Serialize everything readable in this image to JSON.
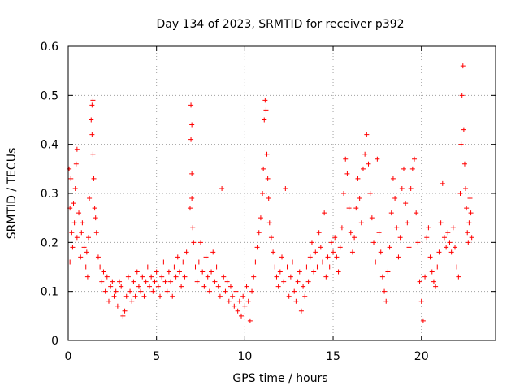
{
  "chart_data": {
    "type": "scatter",
    "title": "Day 134 of 2023, SRMTID for receiver p392",
    "xlabel": "GPS time / hours",
    "ylabel": "SRMTID / TECUs",
    "xlim": [
      0,
      24.2
    ],
    "ylim": [
      0,
      0.6
    ],
    "x_ticks": [
      0,
      5,
      10,
      15,
      20
    ],
    "x_tick_labels": [
      "0",
      "5",
      "10",
      "15",
      "20"
    ],
    "y_ticks": [
      0,
      0.1,
      0.2,
      0.3,
      0.4,
      0.5,
      0.6
    ],
    "y_tick_labels": [
      "0",
      "0.1",
      "0.2",
      "0.3",
      "0.4",
      "0.5",
      "0.6"
    ],
    "grid": true,
    "marker": "plus",
    "series": [
      {
        "name": "SRMTID",
        "color": "#ff0000",
        "points": [
          [
            0.05,
            0.35
          ],
          [
            0.1,
            0.27
          ],
          [
            0.1,
            0.16
          ],
          [
            0.15,
            0.33
          ],
          [
            0.2,
            0.22
          ],
          [
            0.25,
            0.19
          ],
          [
            0.3,
            0.28
          ],
          [
            0.35,
            0.24
          ],
          [
            0.4,
            0.31
          ],
          [
            0.45,
            0.36
          ],
          [
            0.5,
            0.39
          ],
          [
            0.5,
            0.21
          ],
          [
            0.6,
            0.26
          ],
          [
            0.7,
            0.17
          ],
          [
            0.75,
            0.22
          ],
          [
            0.8,
            0.24
          ],
          [
            0.9,
            0.19
          ],
          [
            1.0,
            0.15
          ],
          [
            1.05,
            0.18
          ],
          [
            1.1,
            0.13
          ],
          [
            1.15,
            0.21
          ],
          [
            1.2,
            0.29
          ],
          [
            1.3,
            0.45
          ],
          [
            1.35,
            0.48
          ],
          [
            1.4,
            0.49
          ],
          [
            1.35,
            0.42
          ],
          [
            1.4,
            0.38
          ],
          [
            1.45,
            0.33
          ],
          [
            1.5,
            0.27
          ],
          [
            1.55,
            0.25
          ],
          [
            1.6,
            0.22
          ],
          [
            1.7,
            0.17
          ],
          [
            1.8,
            0.15
          ],
          [
            1.9,
            0.12
          ],
          [
            2.0,
            0.14
          ],
          [
            2.1,
            0.1
          ],
          [
            2.2,
            0.13
          ],
          [
            2.3,
            0.08
          ],
          [
            2.4,
            0.11
          ],
          [
            2.5,
            0.12
          ],
          [
            2.6,
            0.09
          ],
          [
            2.7,
            0.1
          ],
          [
            2.8,
            0.07
          ],
          [
            2.9,
            0.12
          ],
          [
            3.0,
            0.11
          ],
          [
            3.1,
            0.05
          ],
          [
            3.2,
            0.06
          ],
          [
            3.3,
            0.09
          ],
          [
            3.4,
            0.13
          ],
          [
            3.5,
            0.1
          ],
          [
            3.6,
            0.08
          ],
          [
            3.7,
            0.12
          ],
          [
            3.8,
            0.09
          ],
          [
            3.9,
            0.14
          ],
          [
            4.0,
            0.11
          ],
          [
            4.1,
            0.1
          ],
          [
            4.2,
            0.13
          ],
          [
            4.3,
            0.09
          ],
          [
            4.4,
            0.12
          ],
          [
            4.5,
            0.15
          ],
          [
            4.6,
            0.11
          ],
          [
            4.7,
            0.13
          ],
          [
            4.8,
            0.1
          ],
          [
            4.9,
            0.12
          ],
          [
            5.0,
            0.14
          ],
          [
            5.1,
            0.11
          ],
          [
            5.2,
            0.09
          ],
          [
            5.3,
            0.13
          ],
          [
            5.4,
            0.16
          ],
          [
            5.5,
            0.12
          ],
          [
            5.6,
            0.1
          ],
          [
            5.7,
            0.14
          ],
          [
            5.8,
            0.12
          ],
          [
            5.9,
            0.09
          ],
          [
            6.0,
            0.15
          ],
          [
            6.1,
            0.13
          ],
          [
            6.2,
            0.17
          ],
          [
            6.3,
            0.14
          ],
          [
            6.4,
            0.11
          ],
          [
            6.5,
            0.16
          ],
          [
            6.6,
            0.13
          ],
          [
            6.7,
            0.18
          ],
          [
            6.9,
            0.27
          ],
          [
            7.0,
            0.34
          ],
          [
            7.0,
            0.29
          ],
          [
            6.95,
            0.41
          ],
          [
            7.0,
            0.44
          ],
          [
            6.95,
            0.48
          ],
          [
            7.05,
            0.23
          ],
          [
            7.1,
            0.2
          ],
          [
            7.2,
            0.15
          ],
          [
            7.3,
            0.12
          ],
          [
            7.4,
            0.16
          ],
          [
            7.5,
            0.2
          ],
          [
            7.6,
            0.14
          ],
          [
            7.7,
            0.11
          ],
          [
            7.8,
            0.17
          ],
          [
            7.9,
            0.13
          ],
          [
            8.0,
            0.1
          ],
          [
            8.1,
            0.14
          ],
          [
            8.2,
            0.18
          ],
          [
            8.3,
            0.12
          ],
          [
            8.4,
            0.15
          ],
          [
            8.5,
            0.11
          ],
          [
            8.6,
            0.09
          ],
          [
            8.7,
            0.31
          ],
          [
            8.8,
            0.13
          ],
          [
            8.9,
            0.1
          ],
          [
            9.0,
            0.12
          ],
          [
            9.1,
            0.08
          ],
          [
            9.2,
            0.11
          ],
          [
            9.3,
            0.09
          ],
          [
            9.4,
            0.07
          ],
          [
            9.5,
            0.1
          ],
          [
            9.6,
            0.06
          ],
          [
            9.7,
            0.08
          ],
          [
            9.8,
            0.05
          ],
          [
            9.9,
            0.09
          ],
          [
            10.0,
            0.07
          ],
          [
            10.1,
            0.11
          ],
          [
            10.2,
            0.08
          ],
          [
            10.3,
            0.04
          ],
          [
            10.4,
            0.1
          ],
          [
            10.5,
            0.13
          ],
          [
            10.6,
            0.16
          ],
          [
            10.7,
            0.19
          ],
          [
            10.8,
            0.22
          ],
          [
            10.9,
            0.25
          ],
          [
            11.0,
            0.3
          ],
          [
            11.05,
            0.35
          ],
          [
            11.1,
            0.45
          ],
          [
            11.15,
            0.49
          ],
          [
            11.2,
            0.47
          ],
          [
            11.25,
            0.38
          ],
          [
            11.3,
            0.33
          ],
          [
            11.35,
            0.29
          ],
          [
            11.4,
            0.24
          ],
          [
            11.5,
            0.21
          ],
          [
            11.6,
            0.18
          ],
          [
            11.7,
            0.15
          ],
          [
            11.8,
            0.13
          ],
          [
            11.9,
            0.11
          ],
          [
            12.0,
            0.14
          ],
          [
            12.1,
            0.17
          ],
          [
            12.2,
            0.12
          ],
          [
            12.3,
            0.31
          ],
          [
            12.4,
            0.15
          ],
          [
            12.5,
            0.09
          ],
          [
            12.6,
            0.13
          ],
          [
            12.7,
            0.16
          ],
          [
            12.8,
            0.1
          ],
          [
            12.9,
            0.08
          ],
          [
            13.0,
            0.12
          ],
          [
            13.1,
            0.14
          ],
          [
            13.2,
            0.06
          ],
          [
            13.3,
            0.11
          ],
          [
            13.4,
            0.09
          ],
          [
            13.5,
            0.15
          ],
          [
            13.6,
            0.12
          ],
          [
            13.7,
            0.17
          ],
          [
            13.8,
            0.2
          ],
          [
            13.9,
            0.14
          ],
          [
            14.0,
            0.18
          ],
          [
            14.1,
            0.15
          ],
          [
            14.2,
            0.22
          ],
          [
            14.3,
            0.19
          ],
          [
            14.4,
            0.16
          ],
          [
            14.5,
            0.26
          ],
          [
            14.6,
            0.13
          ],
          [
            14.7,
            0.17
          ],
          [
            14.8,
            0.15
          ],
          [
            14.9,
            0.2
          ],
          [
            15.0,
            0.18
          ],
          [
            15.1,
            0.21
          ],
          [
            15.2,
            0.17
          ],
          [
            15.3,
            0.14
          ],
          [
            15.4,
            0.19
          ],
          [
            15.5,
            0.23
          ],
          [
            15.6,
            0.3
          ],
          [
            15.7,
            0.37
          ],
          [
            15.8,
            0.34
          ],
          [
            15.9,
            0.27
          ],
          [
            16.0,
            0.22
          ],
          [
            16.1,
            0.18
          ],
          [
            16.2,
            0.21
          ],
          [
            16.3,
            0.27
          ],
          [
            16.4,
            0.33
          ],
          [
            16.5,
            0.29
          ],
          [
            16.6,
            0.24
          ],
          [
            16.7,
            0.35
          ],
          [
            16.8,
            0.38
          ],
          [
            16.9,
            0.42
          ],
          [
            17.0,
            0.36
          ],
          [
            17.1,
            0.3
          ],
          [
            17.2,
            0.25
          ],
          [
            17.3,
            0.2
          ],
          [
            17.4,
            0.16
          ],
          [
            17.5,
            0.37
          ],
          [
            17.6,
            0.22
          ],
          [
            17.7,
            0.18
          ],
          [
            17.8,
            0.13
          ],
          [
            17.9,
            0.1
          ],
          [
            18.0,
            0.08
          ],
          [
            18.1,
            0.14
          ],
          [
            18.2,
            0.19
          ],
          [
            18.3,
            0.26
          ],
          [
            18.4,
            0.33
          ],
          [
            18.5,
            0.29
          ],
          [
            18.6,
            0.23
          ],
          [
            18.7,
            0.17
          ],
          [
            18.8,
            0.21
          ],
          [
            18.9,
            0.31
          ],
          [
            19.0,
            0.35
          ],
          [
            19.1,
            0.28
          ],
          [
            19.2,
            0.24
          ],
          [
            19.3,
            0.19
          ],
          [
            19.4,
            0.31
          ],
          [
            19.5,
            0.35
          ],
          [
            19.6,
            0.37
          ],
          [
            19.7,
            0.26
          ],
          [
            19.8,
            0.2
          ],
          [
            19.9,
            0.12
          ],
          [
            20.0,
            0.08
          ],
          [
            20.1,
            0.04
          ],
          [
            20.2,
            0.13
          ],
          [
            20.3,
            0.21
          ],
          [
            20.4,
            0.23
          ],
          [
            20.5,
            0.17
          ],
          [
            20.6,
            0.14
          ],
          [
            20.7,
            0.12
          ],
          [
            20.8,
            0.11
          ],
          [
            20.9,
            0.15
          ],
          [
            21.0,
            0.18
          ],
          [
            21.1,
            0.24
          ],
          [
            21.2,
            0.32
          ],
          [
            21.3,
            0.21
          ],
          [
            21.4,
            0.19
          ],
          [
            21.5,
            0.22
          ],
          [
            21.6,
            0.2
          ],
          [
            21.7,
            0.18
          ],
          [
            21.8,
            0.23
          ],
          [
            21.9,
            0.19
          ],
          [
            22.0,
            0.15
          ],
          [
            22.1,
            0.13
          ],
          [
            22.2,
            0.3
          ],
          [
            22.25,
            0.4
          ],
          [
            22.3,
            0.5
          ],
          [
            22.35,
            0.56
          ],
          [
            22.4,
            0.43
          ],
          [
            22.45,
            0.36
          ],
          [
            22.5,
            0.31
          ],
          [
            22.55,
            0.27
          ],
          [
            22.6,
            0.22
          ],
          [
            22.65,
            0.2
          ],
          [
            22.7,
            0.24
          ],
          [
            22.75,
            0.29
          ],
          [
            22.8,
            0.26
          ],
          [
            22.85,
            0.21
          ]
        ]
      }
    ]
  }
}
